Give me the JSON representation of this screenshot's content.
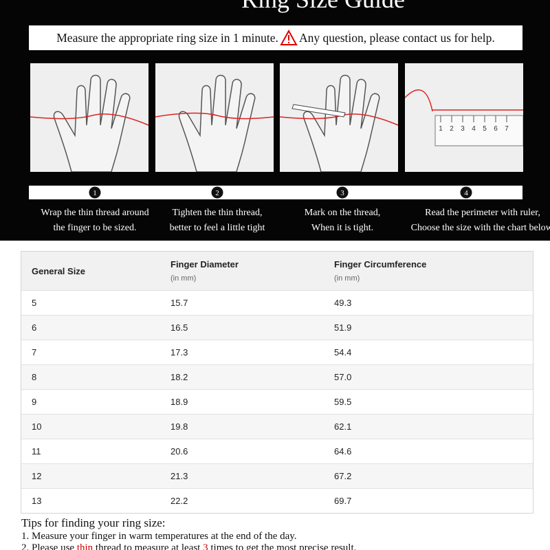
{
  "header": {
    "title": "Ring Size Guide",
    "intro_before": "Measure the appropriate ring size in 1 minute.",
    "intro_after": "Any question, please contact us for help."
  },
  "steps": [
    {
      "number": "1",
      "lines": [
        "Wrap the thin thread around",
        "the finger to be sized."
      ]
    },
    {
      "number": "2",
      "lines": [
        "Tighten the thin thread,",
        "better to feel a little tight"
      ]
    },
    {
      "number": "3",
      "lines": [
        "Mark on the thread,",
        "When it is tight."
      ]
    },
    {
      "number": "4",
      "lines": [
        "Read the perimeter with ruler,",
        "Choose the size with the chart below."
      ]
    }
  ],
  "ruler_labels": [
    "1",
    "2",
    "3",
    "4",
    "5",
    "6",
    "7"
  ],
  "table": {
    "headers": [
      {
        "title": "General Size"
      },
      {
        "title": "Finger Diameter",
        "unit": "(in mm)"
      },
      {
        "title": "Finger Circumference",
        "unit": "(in mm)"
      }
    ],
    "rows": [
      [
        "5",
        "15.7",
        "49.3"
      ],
      [
        "6",
        "16.5",
        "51.9"
      ],
      [
        "7",
        "17.3",
        "54.4"
      ],
      [
        "8",
        "18.2",
        "57.0"
      ],
      [
        "9",
        "18.9",
        "59.5"
      ],
      [
        "10",
        "19.8",
        "62.1"
      ],
      [
        "11",
        "20.6",
        "64.6"
      ],
      [
        "12",
        "21.3",
        "67.2"
      ],
      [
        "13",
        "22.2",
        "69.7"
      ]
    ]
  },
  "tips": {
    "title": "Tips for finding your ring size:",
    "line1": "1. Measure your finger in warm temperatures at the end of the day.",
    "line2": [
      "2. Please use ",
      "thin",
      " thread to measure at least ",
      "3",
      " times to get the most precise result."
    ]
  }
}
